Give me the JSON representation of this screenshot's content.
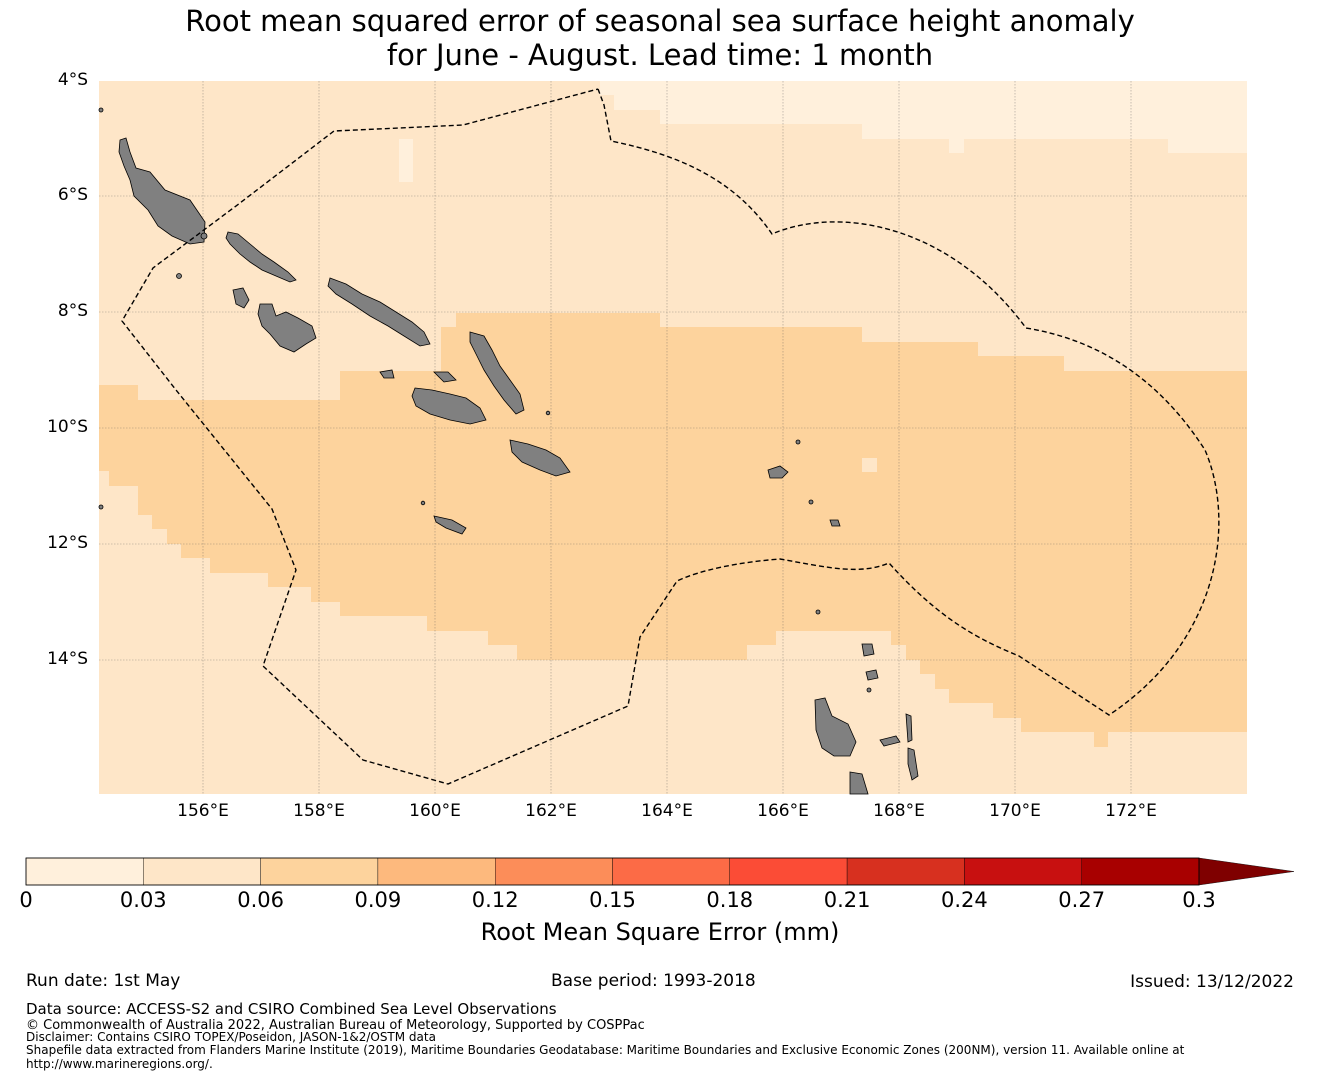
{
  "title": {
    "line1": "Root mean squared error of seasonal sea surface height anomaly",
    "line2": "for June - August. Lead time: 1 month"
  },
  "map": {
    "lon_range": [
      154.2,
      174.0
    ],
    "lat_range": [
      -16.0,
      -4.0
    ],
    "lat_ticks": [
      "4°S",
      "6°S",
      "8°S",
      "10°S",
      "12°S",
      "14°S"
    ],
    "lon_ticks": [
      "156°E",
      "158°E",
      "160°E",
      "162°E",
      "164°E",
      "166°E",
      "168°E",
      "170°E",
      "172°E"
    ],
    "colors": {
      "c1": "#fff0dc",
      "c2": "#fee6c8",
      "c3": "#fdd39d",
      "land": "#808080",
      "grid": "#555555"
    },
    "features": [
      "solomon-islands-land",
      "vanuatu-land",
      "eez-boundary-dashed"
    ]
  },
  "colorbar": {
    "ticks": [
      "0",
      "0.03",
      "0.06",
      "0.09",
      "0.12",
      "0.15",
      "0.18",
      "0.21",
      "0.24",
      "0.27",
      "0.3"
    ],
    "colors": [
      "#fff0dc",
      "#fee6c8",
      "#fdd39d",
      "#fdb97d",
      "#fc8d59",
      "#fc6b46",
      "#fb4c36",
      "#d7301f",
      "#c81010",
      "#a80000",
      "#7f0000"
    ],
    "label": "Root Mean Square Error (mm)"
  },
  "footer": {
    "run_date": "Run date: 1st May",
    "base_period": "Base period: 1993-2018",
    "issued": "Issued: 13/12/2022",
    "data_source": "Data source: ACCESS-S2 and CSIRO Combined Sea Level Observations",
    "copyright": "© Commonwealth of Australia 2022, Australian Bureau of Meteorology, Supported by COSPPac",
    "disclaimer": "Disclaimer: Contains CSIRO TOPEX/Poseidon, JASON-1&2/OSTM data",
    "shapefile": "Shapefile data extracted from Flanders Marine Institute (2019), Maritime Boundaries Geodatabase: Maritime Boundaries and Exclusive Economic Zones (200NM), version 11. Available online at",
    "url": "http://www.marineregions.org/."
  }
}
